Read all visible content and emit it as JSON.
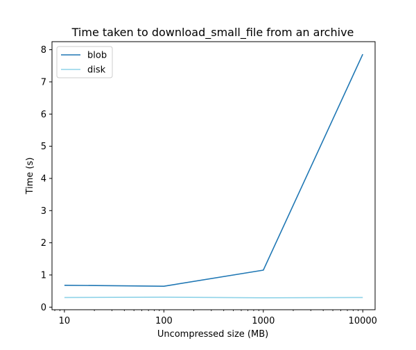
{
  "chart_data": {
    "type": "line",
    "title": "Time taken to download_small_file from an archive",
    "xlabel": "Uncompressed size (MB)",
    "ylabel": "Time (s)",
    "x_scale": "log",
    "x": [
      10,
      100,
      1000,
      10000
    ],
    "x_tick_labels": [
      "10",
      "100",
      "1000",
      "10000"
    ],
    "xlim": [
      7.5,
      13300
    ],
    "ylim": [
      -0.08,
      8.25
    ],
    "y_ticks": [
      0,
      1,
      2,
      3,
      4,
      5,
      6,
      7,
      8
    ],
    "y_tick_labels": [
      "0",
      "1",
      "2",
      "3",
      "4",
      "5",
      "6",
      "7",
      "8"
    ],
    "grid": false,
    "legend_position": "upper-left",
    "series": [
      {
        "name": "blob",
        "color": "#1f77b4",
        "values": [
          0.68,
          0.65,
          1.15,
          7.86
        ]
      },
      {
        "name": "disk",
        "color": "#8fd3e8",
        "values": [
          0.3,
          0.31,
          0.29,
          0.3
        ]
      }
    ]
  }
}
